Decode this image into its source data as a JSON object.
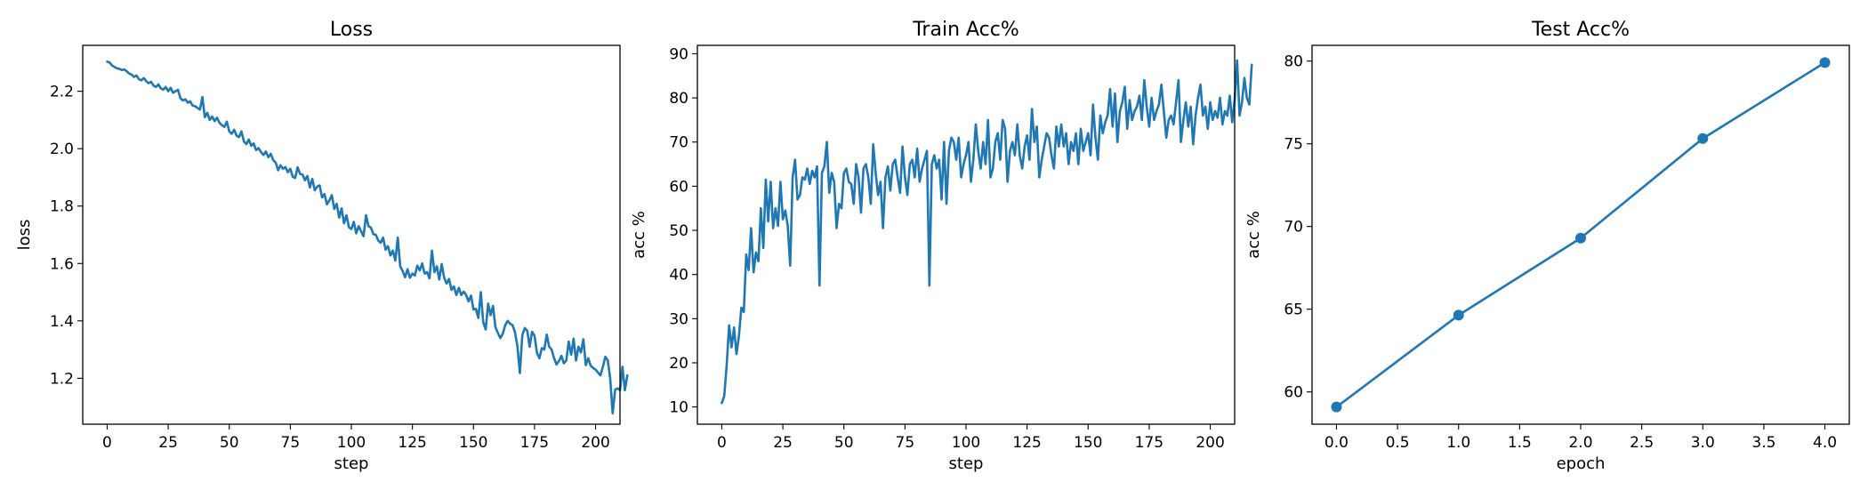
{
  "chart_data": [
    {
      "type": "line",
      "title": "Loss",
      "xlabel": "step",
      "ylabel": "loss",
      "xlim": [
        -10,
        210
      ],
      "ylim": [
        1.04,
        2.36
      ],
      "xticks": [
        0,
        25,
        50,
        75,
        100,
        125,
        150,
        175,
        200
      ],
      "yticks": [
        1.2,
        1.4,
        1.6,
        1.8,
        2.0,
        2.2
      ],
      "ytick_decimals": 1,
      "color": "#1f77b4",
      "markers": false,
      "grid": false,
      "series": [
        {
          "x_start": 0,
          "x_step": 1,
          "values": [
            2.303,
            2.3,
            2.29,
            2.285,
            2.28,
            2.278,
            2.274,
            2.276,
            2.27,
            2.262,
            2.258,
            2.25,
            2.255,
            2.242,
            2.238,
            2.246,
            2.235,
            2.228,
            2.233,
            2.22,
            2.215,
            2.224,
            2.21,
            2.206,
            2.215,
            2.2,
            2.212,
            2.195,
            2.2,
            2.205,
            2.176,
            2.168,
            2.172,
            2.16,
            2.165,
            2.15,
            2.148,
            2.142,
            2.136,
            2.18,
            2.11,
            2.125,
            2.1,
            2.112,
            2.096,
            2.108,
            2.09,
            2.082,
            2.076,
            2.094,
            2.06,
            2.052,
            2.066,
            2.045,
            2.04,
            2.06,
            2.025,
            2.016,
            2.032,
            2.01,
            2.018,
            1.995,
            2.002,
            1.988,
            1.978,
            1.99,
            1.97,
            1.982,
            1.96,
            1.952,
            1.925,
            1.942,
            1.93,
            1.936,
            1.918,
            1.93,
            1.902,
            1.898,
            1.935,
            1.912,
            1.91,
            1.89,
            1.905,
            1.865,
            1.895,
            1.855,
            1.868,
            1.872,
            1.83,
            1.842,
            1.806,
            1.82,
            1.838,
            1.79,
            1.808,
            1.76,
            1.792,
            1.74,
            1.768,
            1.726,
            1.72,
            1.745,
            1.705,
            1.73,
            1.712,
            1.695,
            1.768,
            1.73,
            1.725,
            1.702,
            1.7,
            1.68,
            1.672,
            1.69,
            1.648,
            1.66,
            1.628,
            1.645,
            1.61,
            1.69,
            1.59,
            1.574,
            1.552,
            1.58,
            1.55,
            1.565,
            1.558,
            1.592,
            1.576,
            1.6,
            1.565,
            1.57,
            1.548,
            1.645,
            1.57,
            1.59,
            1.544,
            1.598,
            1.55,
            1.53,
            1.546,
            1.508,
            1.52,
            1.49,
            1.515,
            1.49,
            1.502,
            1.49,
            1.468,
            1.488,
            1.44,
            1.442,
            1.41,
            1.5,
            1.395,
            1.37,
            1.46,
            1.42,
            1.452,
            1.378,
            1.358,
            1.34,
            1.355,
            1.385,
            1.4,
            1.39,
            1.385,
            1.36,
            1.312,
            1.218,
            1.35,
            1.375,
            1.366,
            1.31,
            1.362,
            1.348,
            1.288,
            1.27,
            1.305,
            1.3,
            1.352,
            1.31,
            1.3,
            1.27,
            1.248,
            1.26,
            1.278,
            1.252,
            1.262,
            1.328,
            1.282,
            1.338,
            1.262,
            1.31,
            1.29,
            1.336,
            1.246,
            1.27,
            1.244,
            1.236,
            1.23,
            1.22,
            1.21,
            1.24,
            1.275,
            1.262,
            1.198,
            1.078,
            1.16,
            1.165,
            1.158,
            1.24,
            1.158,
            1.21
          ]
        }
      ]
    },
    {
      "type": "line",
      "title": "Train Acc%",
      "xlabel": "step",
      "ylabel": "acc %",
      "xlim": [
        -10,
        210
      ],
      "ylim": [
        6.1,
        91.9
      ],
      "xticks": [
        0,
        25,
        50,
        75,
        100,
        125,
        150,
        175,
        200
      ],
      "yticks": [
        10,
        20,
        30,
        40,
        50,
        60,
        70,
        80,
        90
      ],
      "ytick_decimals": 0,
      "color": "#1f77b4",
      "markers": false,
      "grid": false,
      "series": [
        {
          "x_start": 0,
          "x_step": 1,
          "values": [
            10.9,
            12.5,
            19.5,
            28.5,
            23.5,
            28.0,
            22.0,
            26.0,
            32.5,
            31.5,
            44.5,
            41.0,
            50.5,
            40.5,
            45.0,
            43.0,
            55.0,
            46.0,
            61.5,
            52.0,
            61.0,
            50.5,
            55.0,
            51.0,
            61.0,
            52.5,
            54.5,
            51.0,
            42.0,
            62.0,
            66.0,
            57.0,
            58.0,
            62.0,
            61.5,
            64.0,
            60.5,
            63.5,
            62.0,
            64.5,
            37.5,
            63.0,
            64.5,
            70.0,
            58.5,
            63.0,
            61.0,
            50.5,
            56.0,
            55.0,
            63.0,
            64.0,
            61.0,
            60.5,
            56.0,
            65.0,
            62.0,
            54.0,
            64.0,
            65.0,
            62.0,
            56.0,
            69.5,
            63.0,
            58.0,
            61.0,
            50.5,
            62.0,
            64.5,
            59.0,
            65.0,
            66.0,
            62.0,
            58.5,
            69.0,
            62.0,
            58.0,
            65.0,
            66.0,
            62.0,
            68.5,
            61.0,
            64.0,
            66.0,
            68.0,
            37.5,
            65.0,
            67.0,
            64.0,
            66.0,
            57.0,
            70.0,
            56.0,
            68.0,
            71.0,
            70.0,
            66.0,
            71.0,
            62.0,
            65.0,
            67.0,
            70.0,
            61.0,
            66.0,
            74.0,
            68.0,
            64.0,
            70.0,
            65.0,
            75.0,
            62.0,
            64.0,
            70.0,
            72.0,
            66.0,
            75.0,
            73.0,
            61.0,
            68.0,
            70.0,
            67.0,
            74.0,
            67.0,
            64.0,
            69.0,
            71.5,
            66.0,
            77.5,
            70.0,
            73.5,
            62.0,
            66.0,
            69.0,
            72.0,
            71.0,
            67.0,
            64.0,
            73.5,
            69.0,
            74.0,
            69.0,
            72.0,
            65.0,
            70.0,
            68.0,
            72.0,
            65.0,
            73.0,
            68.0,
            70.0,
            72.0,
            67.0,
            78.5,
            71.0,
            66.0,
            76.0,
            72.0,
            74.5,
            76.0,
            82.0,
            73.5,
            81.0,
            70.0,
            77.0,
            79.0,
            82.5,
            73.0,
            79.5,
            75.0,
            77.0,
            78.0,
            80.5,
            75.0,
            84.0,
            78.0,
            73.5,
            80.0,
            75.0,
            77.0,
            78.5,
            83.0,
            77.0,
            71.0,
            75.0,
            76.0,
            74.0,
            79.0,
            84.0,
            70.0,
            75.0,
            79.0,
            73.5,
            78.0,
            69.5,
            76.0,
            80.0,
            83.0,
            76.0,
            78.0,
            73.0,
            79.0,
            75.0,
            77.0,
            75.5,
            80.0,
            74.0,
            77.0,
            76.0,
            80.5,
            74.5,
            79.5,
            88.5,
            76.0,
            79.0,
            84.5,
            80.0,
            78.5,
            87.5
          ]
        }
      ]
    },
    {
      "type": "line",
      "title": "Test Acc%",
      "xlabel": "epoch",
      "ylabel": "acc %",
      "xlim": [
        -0.2,
        4.2
      ],
      "ylim": [
        58.05,
        80.95
      ],
      "xticks": [
        0,
        0.5,
        1.0,
        1.5,
        2.0,
        2.5,
        3.0,
        3.5,
        4.0
      ],
      "xtick_decimals": 1,
      "yticks": [
        60,
        65,
        70,
        75,
        80
      ],
      "ytick_decimals": 0,
      "color": "#1f77b4",
      "markers": true,
      "grid": false,
      "series": [
        {
          "x": [
            0,
            1,
            2,
            3,
            4
          ],
          "values": [
            59.09,
            64.64,
            69.3,
            75.32,
            79.91
          ]
        }
      ]
    }
  ]
}
